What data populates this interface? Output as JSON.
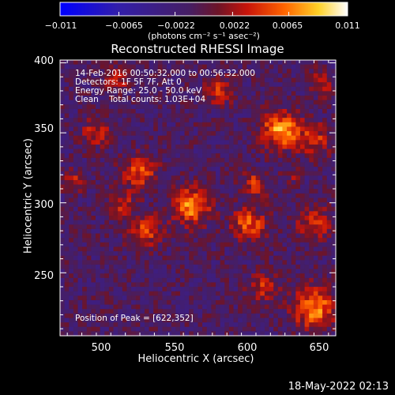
{
  "colorbar": {
    "tick_labels": [
      "−0.011",
      "−0.0065",
      "−0.0022",
      "0.0022",
      "0.0065",
      "0.011"
    ],
    "tick_values": [
      -0.011,
      -0.0065,
      -0.0022,
      0.0022,
      0.0065,
      0.011
    ],
    "units": "(photons cm⁻² s⁻¹ asec⁻²)"
  },
  "info": {
    "time_range": "14-Feb-2016 00:50:32.000 to 00:56:32.000",
    "detectors": "Detectors: 1F 5F 7F, Att 0",
    "energy": "Energy Range: 25.0 - 50.0 keV",
    "clean": "Clean    Total counts: 1.03E+04",
    "peak": "Position of Peak = [622,352]"
  },
  "timestamp": "18-May-2022 02:13",
  "chart_data": {
    "type": "heatmap",
    "title": "Reconstructed RHESSI Image",
    "xlabel": "Heliocentric X (arcsec)",
    "ylabel": "Heliocentric Y (arcsec)",
    "xlim": [
      470,
      660
    ],
    "ylim": [
      205,
      402
    ],
    "xticks": [
      500,
      550,
      600,
      650
    ],
    "yticks": [
      250,
      300,
      350,
      400
    ],
    "colormap": "blue-purple-red-yellow-white",
    "value_range": [
      -0.011,
      0.011
    ],
    "sources": [
      {
        "x": 560,
        "y": 298,
        "sigma": 9,
        "value": 0.0085
      },
      {
        "x": 525,
        "y": 322,
        "sigma": 8,
        "value": 0.006
      },
      {
        "x": 513,
        "y": 300,
        "sigma": 6,
        "value": 0.0045
      },
      {
        "x": 528,
        "y": 280,
        "sigma": 8,
        "value": 0.0055
      },
      {
        "x": 604,
        "y": 313,
        "sigma": 6,
        "value": 0.0055
      },
      {
        "x": 600,
        "y": 285,
        "sigma": 8,
        "value": 0.0065
      },
      {
        "x": 645,
        "y": 285,
        "sigma": 8,
        "value": 0.005
      },
      {
        "x": 622,
        "y": 352,
        "sigma": 9,
        "value": 0.009
      },
      {
        "x": 645,
        "y": 345,
        "sigma": 8,
        "value": 0.005
      },
      {
        "x": 645,
        "y": 225,
        "sigma": 10,
        "value": 0.008
      },
      {
        "x": 610,
        "y": 240,
        "sigma": 7,
        "value": 0.0045
      },
      {
        "x": 495,
        "y": 350,
        "sigma": 7,
        "value": 0.0045
      },
      {
        "x": 480,
        "y": 315,
        "sigma": 5,
        "value": 0.004
      },
      {
        "x": 580,
        "y": 380,
        "sigma": 7,
        "value": 0.0045
      },
      {
        "x": 510,
        "y": 390,
        "sigma": 7,
        "value": 0.004
      },
      {
        "x": 650,
        "y": 385,
        "sigma": 6,
        "value": 0.004
      },
      {
        "x": 630,
        "y": 320,
        "sigma": 4,
        "value": 0.003
      }
    ],
    "peak": [
      622,
      352
    ]
  }
}
